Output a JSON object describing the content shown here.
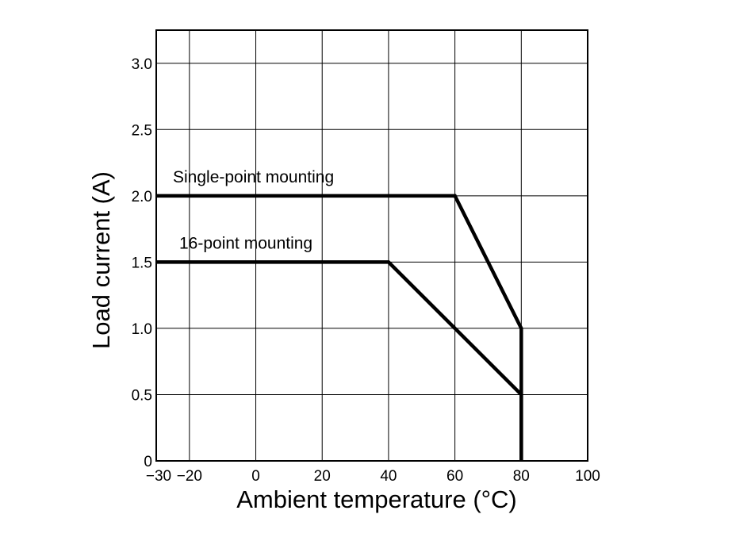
{
  "chart_data": {
    "type": "line",
    "xlabel": "Ambient temperature (°C)",
    "ylabel": "Load current (A)",
    "xlim": [
      -30,
      100
    ],
    "ylim": [
      0,
      3.25
    ],
    "x_ticks": [
      {
        "value": -30,
        "label": "−30"
      },
      {
        "value": -20,
        "label": "−20"
      },
      {
        "value": 0,
        "label": "0"
      },
      {
        "value": 20,
        "label": "20"
      },
      {
        "value": 40,
        "label": "40"
      },
      {
        "value": 60,
        "label": "60"
      },
      {
        "value": 80,
        "label": "80"
      },
      {
        "value": 100,
        "label": "100"
      }
    ],
    "y_ticks": [
      {
        "value": 0,
        "label": "0"
      },
      {
        "value": 0.5,
        "label": "0.5"
      },
      {
        "value": 1.0,
        "label": "1.0"
      },
      {
        "value": 1.5,
        "label": "1.5"
      },
      {
        "value": 2.0,
        "label": "2.0"
      },
      {
        "value": 2.5,
        "label": "2.5"
      },
      {
        "value": 3.0,
        "label": "3.0"
      }
    ],
    "x_gridlines": [
      -20,
      0,
      20,
      40,
      60,
      80
    ],
    "y_gridlines": [
      0.5,
      1.0,
      1.5,
      2.0,
      2.5,
      3.0
    ],
    "grid": true,
    "series": [
      {
        "name": "Single-point mounting",
        "points": [
          [
            -30,
            2.0
          ],
          [
            60,
            2.0
          ],
          [
            80,
            1.0
          ],
          [
            80,
            0
          ]
        ]
      },
      {
        "name": "16-point mounting",
        "points": [
          [
            -30,
            1.5
          ],
          [
            40,
            1.5
          ],
          [
            80,
            0.5
          ],
          [
            80,
            0
          ]
        ]
      }
    ],
    "colors": {
      "line": "#000000",
      "grid": "#000000",
      "background": "#ffffff"
    }
  }
}
